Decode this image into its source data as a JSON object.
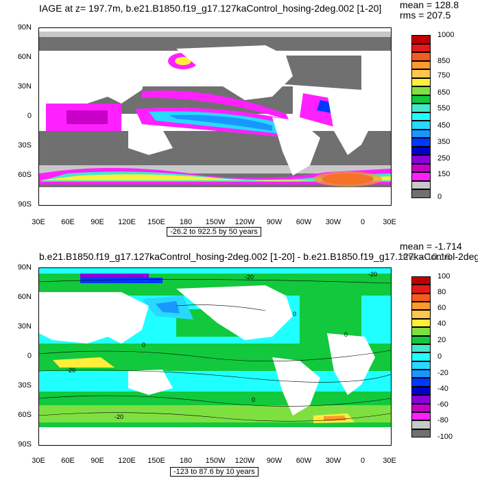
{
  "top": {
    "title": "IAGE at z= 197.7m, b.e21.B1850.f19_g17.127kaControl_hosing-2deg.002 [1-20]",
    "mean": "mean = 128.8",
    "rms": "rms = 207.5",
    "range": "-26.2 to 922.5 by 50 years",
    "colorbar": {
      "labels": [
        "1000",
        "850",
        "750",
        "650",
        "550",
        "450",
        "350",
        "250",
        "150",
        "0"
      ],
      "colors": [
        "#c00000",
        "#e81818",
        "#f55a1e",
        "#fb9a2e",
        "#ffc84a",
        "#ffee3a",
        "#7ee040",
        "#12c83c",
        "#44e8c8",
        "#20ffff",
        "#28d8ff",
        "#1898ff",
        "#0038ff",
        "#0000d0",
        "#8a00d8",
        "#c800c8",
        "#ff20ff",
        "#c8c8c8",
        "#707070"
      ]
    }
  },
  "bottom": {
    "title": "b.e21.B1850.f19_g17.127kaControl_hosing-2deg.002 [1-20] - b.e21.B1850.f19_g17.127kaControl-2deg.",
    "mean": "mean = -1.714",
    "rms": "rms = 10.16",
    "range": "-123 to 87.6 by 10 years",
    "colorbar": {
      "labels": [
        "100",
        "80",
        "60",
        "40",
        "20",
        "0",
        "-20",
        "-40",
        "-60",
        "-80",
        "-100"
      ],
      "colors": [
        "#c00000",
        "#e81818",
        "#f55a1e",
        "#fb9a2e",
        "#ffc84a",
        "#ffee3a",
        "#7ee040",
        "#12c83c",
        "#44e8c8",
        "#20ffff",
        "#28d8ff",
        "#1898ff",
        "#0038ff",
        "#0000d0",
        "#8a00d8",
        "#c800c8",
        "#ff20ff",
        "#c8c8c8",
        "#707070"
      ],
      "contour_labels": [
        "-20",
        "-20",
        "-20",
        "0",
        "0",
        "0",
        "0",
        "-20"
      ]
    }
  },
  "axes": {
    "lat_labels": [
      "90N",
      "60N",
      "30N",
      "0",
      "30S",
      "60S",
      "90S"
    ],
    "lon_labels": [
      "30E",
      "60E",
      "90E",
      "120E",
      "150E",
      "180",
      "150W",
      "120W",
      "90W",
      "60W",
      "30W",
      "0",
      "30E"
    ]
  }
}
